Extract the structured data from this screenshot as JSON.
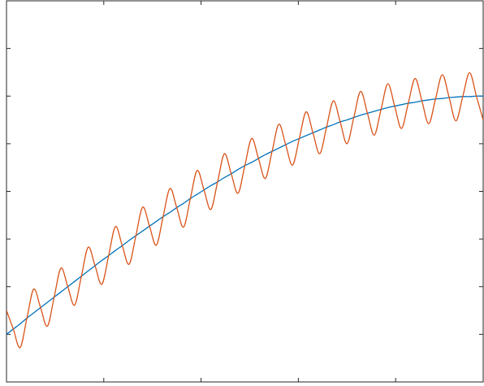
{
  "chart_data": {
    "type": "line",
    "x": [
      0,
      0.07,
      0.14,
      0.21,
      0.28,
      0.35,
      0.42,
      0.49,
      0.56,
      0.63,
      0.7,
      0.77,
      0.84,
      0.91,
      0.98,
      1.05,
      1.12,
      1.19,
      1.26,
      1.33,
      1.4,
      1.47,
      1.54,
      1.61,
      1.68,
      1.75,
      1.82,
      1.89,
      1.96,
      2.03,
      2.1,
      2.17,
      2.24,
      2.31,
      2.38,
      2.45,
      2.52,
      2.59,
      2.66,
      2.73,
      2.8,
      2.87,
      2.94,
      3.01,
      3.08,
      3.15,
      3.22,
      3.29,
      3.36,
      3.43,
      3.5,
      3.57,
      3.64,
      3.71,
      3.78,
      3.85,
      3.92,
      3.99,
      4.06,
      4.13,
      4.2,
      4.27,
      4.34,
      4.41,
      4.48,
      4.55,
      4.62,
      4.69,
      4.76,
      4.83,
      4.9
    ],
    "series": [
      {
        "color": "#0072BD",
        "values": [
          1.0,
          1.11,
          1.22,
          1.34,
          1.45,
          1.56,
          1.67,
          1.78,
          1.89,
          2.0,
          2.11,
          2.22,
          2.33,
          2.44,
          2.55,
          2.65,
          2.76,
          2.86,
          2.97,
          3.07,
          3.17,
          3.27,
          3.37,
          3.47,
          3.56,
          3.66,
          3.75,
          3.85,
          3.94,
          4.03,
          4.12,
          4.2,
          4.29,
          4.37,
          4.46,
          4.54,
          4.61,
          4.69,
          4.77,
          4.84,
          4.91,
          4.98,
          5.05,
          5.11,
          5.17,
          5.23,
          5.29,
          5.35,
          5.4,
          5.46,
          5.5,
          5.55,
          5.6,
          5.64,
          5.68,
          5.72,
          5.76,
          5.79,
          5.82,
          5.85,
          5.87,
          5.9,
          5.92,
          5.94,
          5.95,
          5.97,
          5.98,
          5.99,
          5.99,
          6.0,
          6.0
        ]
      },
      {
        "color": "#D95319",
        "values": [
          1.5,
          1.11,
          0.72,
          1.34,
          1.95,
          1.56,
          1.17,
          1.78,
          2.39,
          2.0,
          1.61,
          2.22,
          2.83,
          2.44,
          2.05,
          2.65,
          3.26,
          2.86,
          2.47,
          3.07,
          3.67,
          3.27,
          2.87,
          3.47,
          4.06,
          3.66,
          3.25,
          3.85,
          4.44,
          4.03,
          3.62,
          4.2,
          4.79,
          4.37,
          3.96,
          4.54,
          5.11,
          4.69,
          4.27,
          4.84,
          5.41,
          4.98,
          4.55,
          5.11,
          5.67,
          5.23,
          4.79,
          5.35,
          5.9,
          5.46,
          5.0,
          5.55,
          6.1,
          5.64,
          5.18,
          5.72,
          6.26,
          5.79,
          5.32,
          5.85,
          6.37,
          5.9,
          5.42,
          5.94,
          6.45,
          5.97,
          5.48,
          5.99,
          6.49,
          6.0,
          5.5
        ]
      }
    ],
    "xlim": [
      0,
      4.9
    ],
    "ylim": [
      0,
      8
    ],
    "xticks": [
      1,
      2,
      3,
      4
    ],
    "yticks": [
      1,
      2,
      3,
      4,
      5,
      6,
      7
    ]
  }
}
